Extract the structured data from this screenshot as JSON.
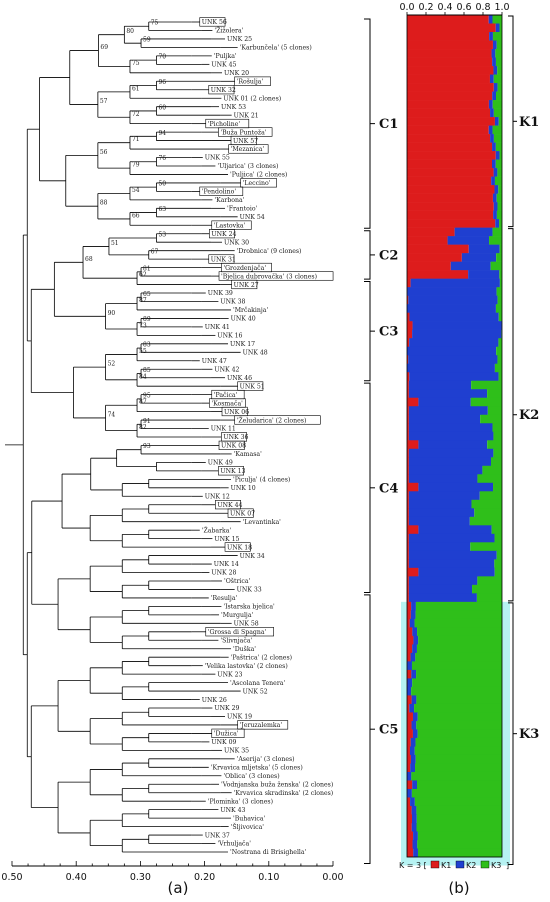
{
  "chart_data": [
    {
      "type": "dendrogram",
      "panel_label": "(a)",
      "x_ticks": [
        "0.50",
        "0.40",
        "0.30",
        "0.20",
        "0.10",
        "0.00"
      ],
      "xlim": [
        0.5,
        0.0
      ],
      "clusters": [
        {
          "name": "C1",
          "start": 0,
          "end": 24
        },
        {
          "name": "C2",
          "start": 25,
          "end": 30
        },
        {
          "name": "C3",
          "start": 31,
          "end": 42
        },
        {
          "name": "C4",
          "start": 43,
          "end": 67
        },
        {
          "name": "C5",
          "start": 68,
          "end": 99
        }
      ],
      "bootstrap_values": [
        "75",
        "59",
        "80",
        "70",
        "75",
        "69",
        "96",
        "61",
        "60",
        "72",
        "57",
        "94",
        "71",
        "76",
        "79",
        "56",
        "50",
        "54",
        "63",
        "66",
        "88",
        "53",
        "67",
        "51",
        "81",
        "62",
        "68",
        "65",
        "87",
        "89",
        "73",
        "90",
        "83",
        "55",
        "85",
        "84",
        "52",
        "95",
        "87",
        "91",
        "82",
        "74",
        "93"
      ],
      "leaves": [
        {
          "label": "UNK 56",
          "boxed": true
        },
        {
          "label": "'Žižolera'",
          "boxed": false
        },
        {
          "label": "UNK 25",
          "boxed": false
        },
        {
          "label": "'Karbunčela' (5 clones)",
          "boxed": false
        },
        {
          "label": "'Puljka'",
          "boxed": false
        },
        {
          "label": "UNK 45",
          "boxed": false
        },
        {
          "label": "UNK 20",
          "boxed": false
        },
        {
          "label": "'Rošulja'",
          "boxed": true
        },
        {
          "label": "UNK 32",
          "boxed": true
        },
        {
          "label": "UNK 01 (2 clones)",
          "boxed": false
        },
        {
          "label": "UNK 53",
          "boxed": false
        },
        {
          "label": "UNK 21",
          "boxed": false
        },
        {
          "label": "'Picholine'",
          "boxed": true
        },
        {
          "label": "'Buža Puntoža'",
          "boxed": true
        },
        {
          "label": "UNK 57",
          "boxed": true
        },
        {
          "label": "'Mezanica'",
          "boxed": true
        },
        {
          "label": "UNK 55",
          "boxed": false
        },
        {
          "label": "'Uljarica' (3 clones)",
          "boxed": false
        },
        {
          "label": "'Puljica' (2 clones)",
          "boxed": false
        },
        {
          "label": "'Leccino'",
          "boxed": true
        },
        {
          "label": "'Pendolino'",
          "boxed": true
        },
        {
          "label": "'Karbona'",
          "boxed": false
        },
        {
          "label": "'Frantoio'",
          "boxed": false
        },
        {
          "label": "UNK 54",
          "boxed": false
        },
        {
          "label": "'Lastovka'",
          "boxed": true
        },
        {
          "label": "UNK 24",
          "boxed": true
        },
        {
          "label": "UNK 30",
          "boxed": false
        },
        {
          "label": "'Drobnica' (9 clones)",
          "boxed": false
        },
        {
          "label": "UNK 31",
          "boxed": true
        },
        {
          "label": "'Grozdenjača'",
          "boxed": true
        },
        {
          "label": "'Bjelica dubrovačka' (3 clones)",
          "boxed": true
        },
        {
          "label": "UNK 27",
          "boxed": true
        },
        {
          "label": "UNK 39",
          "boxed": false
        },
        {
          "label": "UNK 38",
          "boxed": false
        },
        {
          "label": "'Mrčakinja'",
          "boxed": false
        },
        {
          "label": "UNK 40",
          "boxed": false
        },
        {
          "label": "UNK 41",
          "boxed": false
        },
        {
          "label": "UNK 16",
          "boxed": false
        },
        {
          "label": "UNK 17",
          "boxed": false
        },
        {
          "label": "UNK 48",
          "boxed": false
        },
        {
          "label": "UNK 47",
          "boxed": false
        },
        {
          "label": "UNK 42",
          "boxed": false
        },
        {
          "label": "UNK 46",
          "boxed": false
        },
        {
          "label": "UNK 51",
          "boxed": true
        },
        {
          "label": "'Pačica'",
          "boxed": true
        },
        {
          "label": "'Kosmača'",
          "boxed": true
        },
        {
          "label": "UNK 06",
          "boxed": true
        },
        {
          "label": "'Želudarica' (2 clones)",
          "boxed": true
        },
        {
          "label": "UNK 11",
          "boxed": false
        },
        {
          "label": "UNK 36",
          "boxed": true
        },
        {
          "label": "UNK 08",
          "boxed": true
        },
        {
          "label": "'Kamasa'",
          "boxed": false
        },
        {
          "label": "UNK 49",
          "boxed": false
        },
        {
          "label": "UNK 13",
          "boxed": true
        },
        {
          "label": "'Piculja' (4 clones)",
          "boxed": false
        },
        {
          "label": "UNK 10",
          "boxed": false
        },
        {
          "label": "UNK 12",
          "boxed": false
        },
        {
          "label": "UNK 44",
          "boxed": true
        },
        {
          "label": "UNK 07",
          "boxed": true
        },
        {
          "label": "'Levantinka'",
          "boxed": false
        },
        {
          "label": "'Žabarka'",
          "boxed": false
        },
        {
          "label": "UNK 15",
          "boxed": false
        },
        {
          "label": "UNK 18",
          "boxed": true
        },
        {
          "label": "UNK 34",
          "boxed": false
        },
        {
          "label": "UNK 14",
          "boxed": false
        },
        {
          "label": "UNK 28",
          "boxed": false
        },
        {
          "label": "'Oštrica'",
          "boxed": false
        },
        {
          "label": "UNK 33",
          "boxed": false
        },
        {
          "label": "'Resulja'",
          "boxed": false
        },
        {
          "label": "'Istarska bjelica'",
          "boxed": false
        },
        {
          "label": "'Murgulja'",
          "boxed": false
        },
        {
          "label": "UNK 58",
          "boxed": false
        },
        {
          "label": "'Grossa di Spagna'",
          "boxed": true
        },
        {
          "label": "'Slivnjača'",
          "boxed": false
        },
        {
          "label": "'Duška'",
          "boxed": false
        },
        {
          "label": "'Paštrica' (2 clones)",
          "boxed": false
        },
        {
          "label": "'Velika lastovka' (2 clones)",
          "boxed": false
        },
        {
          "label": "UNK 23",
          "boxed": false
        },
        {
          "label": "'Ascolana Tenera'",
          "boxed": false
        },
        {
          "label": "UNK 52",
          "boxed": false
        },
        {
          "label": "UNK 26",
          "boxed": false
        },
        {
          "label": "UNK 29",
          "boxed": false
        },
        {
          "label": "UNK 19",
          "boxed": false
        },
        {
          "label": "'Jeruzalemka'",
          "boxed": true
        },
        {
          "label": "'Dužica'",
          "boxed": true
        },
        {
          "label": "UNK 09",
          "boxed": false
        },
        {
          "label": "UNK 35",
          "boxed": false
        },
        {
          "label": "'Aserija' (3 clones)",
          "boxed": false
        },
        {
          "label": "'Krvavica mljetska' (5 clones)",
          "boxed": false
        },
        {
          "label": "'Oblica' (3 clones)",
          "boxed": false
        },
        {
          "label": "'Vodnjanska buža ženska' (2 clones)",
          "boxed": false
        },
        {
          "label": "'Krvavica skradinska' (2 clones)",
          "boxed": false
        },
        {
          "label": "'Plominka' (3 clones)",
          "boxed": false
        },
        {
          "label": "UNK 43",
          "boxed": false
        },
        {
          "label": "'Buhavica'",
          "boxed": false
        },
        {
          "label": "'Šljivovica'",
          "boxed": false
        },
        {
          "label": "UNK 37",
          "boxed": false
        },
        {
          "label": "'Vrhuljača'",
          "boxed": false
        },
        {
          "label": "'Nostrana di Brisighella'",
          "boxed": false
        }
      ]
    },
    {
      "type": "stacked-bar",
      "panel_label": "(b)",
      "x_ticks": [
        "0.0",
        "0.2",
        "0.4",
        "0.6",
        "0.8",
        "1.0"
      ],
      "xlim": [
        0,
        1
      ],
      "legend_prefix": "K = 3 [",
      "legend_suffix": "]",
      "series": [
        {
          "name": "K1",
          "color": "#dd1c1c"
        },
        {
          "name": "K2",
          "color": "#1f3fd0"
        },
        {
          "name": "K3",
          "color": "#2fbf1a"
        }
      ],
      "groups": [
        {
          "name": "K1",
          "start": 0,
          "end": 24
        },
        {
          "name": "K2",
          "start": 25,
          "end": 68
        },
        {
          "name": "K3",
          "start": 69,
          "end": 99
        }
      ],
      "highlight_color": "#b6f2f2",
      "segments": [
        {
          "from": 0,
          "to": 24,
          "k1": 0.9,
          "k2": 0.04,
          "k3": 0.06
        },
        {
          "from": 25,
          "to": 30,
          "k1": 0.35,
          "k2": 0.38,
          "k3": 0.27
        },
        {
          "from": 31,
          "to": 42,
          "k1": 0.02,
          "k2": 0.94,
          "k3": 0.04
        },
        {
          "from": 43,
          "to": 68,
          "k1": 0.06,
          "k2": 0.8,
          "k3": 0.14
        },
        {
          "from": 69,
          "to": 99,
          "k1": 0.03,
          "k2": 0.05,
          "k3": 0.92
        }
      ]
    }
  ]
}
